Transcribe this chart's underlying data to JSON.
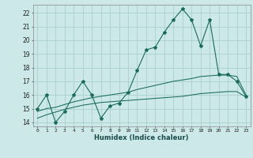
{
  "title": "",
  "xlabel": "Humidex (Indice chaleur)",
  "bg_color": "#cce8e8",
  "grid_color": "#aacfcf",
  "line_color": "#1a6b5a",
  "x_data": [
    0,
    1,
    2,
    3,
    4,
    5,
    6,
    7,
    8,
    9,
    10,
    11,
    12,
    13,
    14,
    15,
    16,
    17,
    18,
    19,
    20,
    21,
    22,
    23
  ],
  "y_main": [
    15,
    16,
    14,
    14.8,
    16,
    17,
    16,
    14.3,
    15.2,
    15.4,
    16.2,
    17.8,
    19.3,
    19.5,
    20.6,
    21.5,
    22.3,
    21.5,
    19.6,
    21.5,
    17.5,
    17.5,
    17.0,
    15.9
  ],
  "y_smooth1": [
    14.8,
    15.0,
    15.1,
    15.3,
    15.5,
    15.65,
    15.8,
    15.9,
    16.0,
    16.1,
    16.2,
    16.4,
    16.55,
    16.7,
    16.85,
    17.0,
    17.1,
    17.2,
    17.35,
    17.4,
    17.45,
    17.45,
    17.35,
    16.0
  ],
  "y_smooth2": [
    14.3,
    14.55,
    14.75,
    14.95,
    15.1,
    15.25,
    15.35,
    15.45,
    15.5,
    15.55,
    15.6,
    15.65,
    15.7,
    15.75,
    15.8,
    15.85,
    15.9,
    16.0,
    16.1,
    16.15,
    16.2,
    16.25,
    16.25,
    15.85
  ],
  "ylim": [
    13.7,
    22.6
  ],
  "xlim": [
    -0.5,
    23.5
  ],
  "yticks": [
    14,
    15,
    16,
    17,
    18,
    19,
    20,
    21,
    22
  ],
  "xtick_labels": [
    "0",
    "1",
    "2",
    "3",
    "4",
    "5",
    "6",
    "7",
    "8",
    "9",
    "10",
    "11",
    "12",
    "13",
    "14",
    "15",
    "16",
    "17",
    "18",
    "19",
    "20",
    "21",
    "22",
    "23"
  ]
}
